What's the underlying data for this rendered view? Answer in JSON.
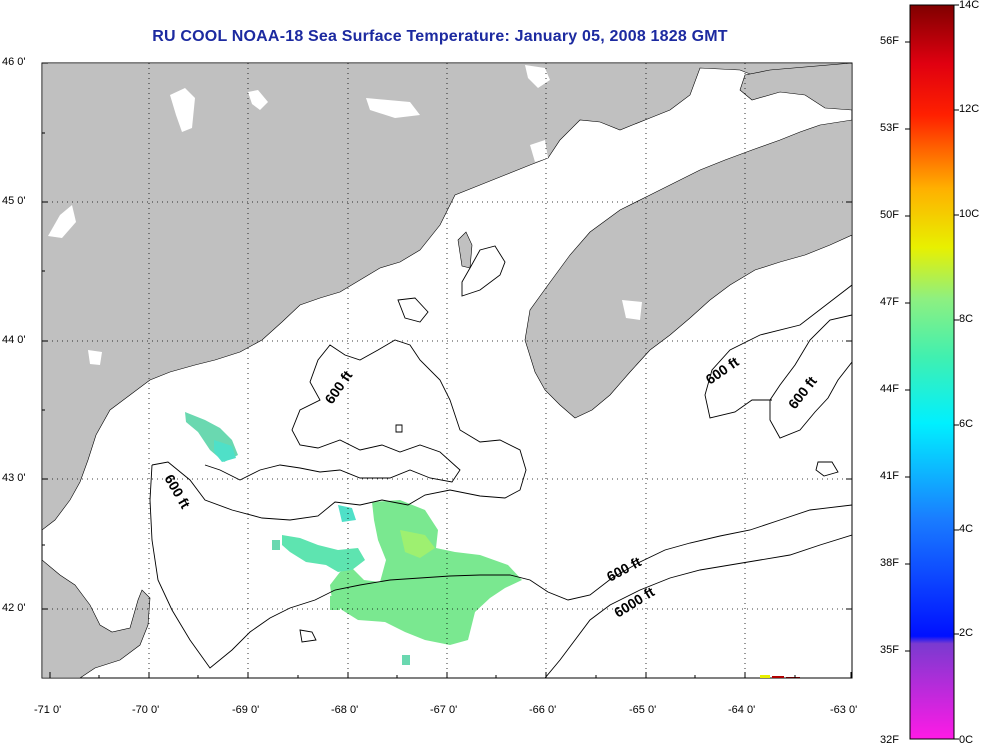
{
  "title": "RU COOL  NOAA-18  Sea Surface Temperature:  January 05, 2008 1828 GMT",
  "lat_labels": [
    "46 0'",
    "45 0'",
    "44 0'",
    "43 0'",
    "42 0'"
  ],
  "lon_labels": [
    "-71 0'",
    "-70 0'",
    "-69 0'",
    "-68 0'",
    "-67 0'",
    "-66 0'",
    "-65 0'",
    "-64 0'",
    "-63 0'"
  ],
  "contour_labels": [
    {
      "text": "600 ft",
      "where": "near -68.1, 43.7"
    },
    {
      "text": "600 ft",
      "where": "near -70.4, 42.9"
    },
    {
      "text": "600 ft",
      "where": "near -65.6, 42.3"
    },
    {
      "text": "6000 ft",
      "where": "near -65.5, 42.0"
    },
    {
      "text": "600 ft",
      "where": "near -64.0, 43.8"
    },
    {
      "text": "600 ft",
      "where": "near -63.7, 43.6"
    }
  ],
  "colorbar": {
    "fahrenheit_labels": [
      "56F",
      "53F",
      "50F",
      "47F",
      "44F",
      "41F",
      "38F",
      "35F",
      "32F"
    ],
    "celsius_labels": [
      "14C",
      "12C",
      "10C",
      "8C",
      "6C",
      "4C",
      "2C",
      "0C"
    ]
  },
  "colors": {
    "land": "#c0c0c0",
    "title": "#1c2aa0",
    "sst_patch": "#8fe87a",
    "sst_cool": "#4fe0c8"
  }
}
